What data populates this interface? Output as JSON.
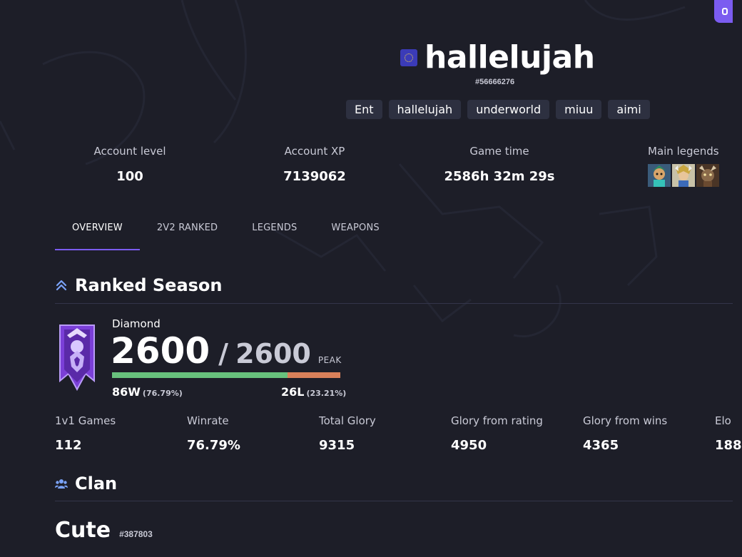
{
  "player": {
    "name": "hallelujah",
    "id": "#56666276",
    "aliases": [
      "Ent",
      "hallelujah",
      "underworld",
      "miuu",
      "aimi"
    ]
  },
  "account_stats": {
    "level_label": "Account level",
    "level_value": "100",
    "xp_label": "Account XP",
    "xp_value": "7139062",
    "time_label": "Game time",
    "time_value": "2586h 32m 29s",
    "legends_label": "Main legends",
    "legend_icons": [
      "legend-portrait-1",
      "legend-portrait-2",
      "legend-portrait-3"
    ]
  },
  "tabs": [
    {
      "label": "OVERVIEW",
      "active": true
    },
    {
      "label": "2V2 RANKED",
      "active": false
    },
    {
      "label": "LEGENDS",
      "active": false
    },
    {
      "label": "WEAPONS",
      "active": false
    }
  ],
  "ranked": {
    "section_title": "Ranked Season",
    "tier": "Diamond",
    "rating": "2600",
    "separator": "/",
    "peak_rating": "2600",
    "peak_label": "PEAK",
    "wins": "86W",
    "win_pct": "(76.79%)",
    "losses": "26L",
    "loss_pct": "(23.21%)",
    "win_fraction": 0.7679,
    "stats": [
      {
        "label": "1v1 Games",
        "value": "112"
      },
      {
        "label": "Winrate",
        "value": "76.79%"
      },
      {
        "label": "Total Glory",
        "value": "9315"
      },
      {
        "label": "Glory from rating",
        "value": "4950"
      },
      {
        "label": "Glory from wins",
        "value": "4365"
      },
      {
        "label": "Elo",
        "value": "188"
      }
    ]
  },
  "clan": {
    "section_title": "Clan",
    "name": "Cute",
    "id": "#387803"
  },
  "colors": {
    "background": "#1d1e28",
    "accent": "#7b5cf0",
    "win": "#68c17d",
    "loss": "#d9805a",
    "chip": "#2d3040"
  }
}
